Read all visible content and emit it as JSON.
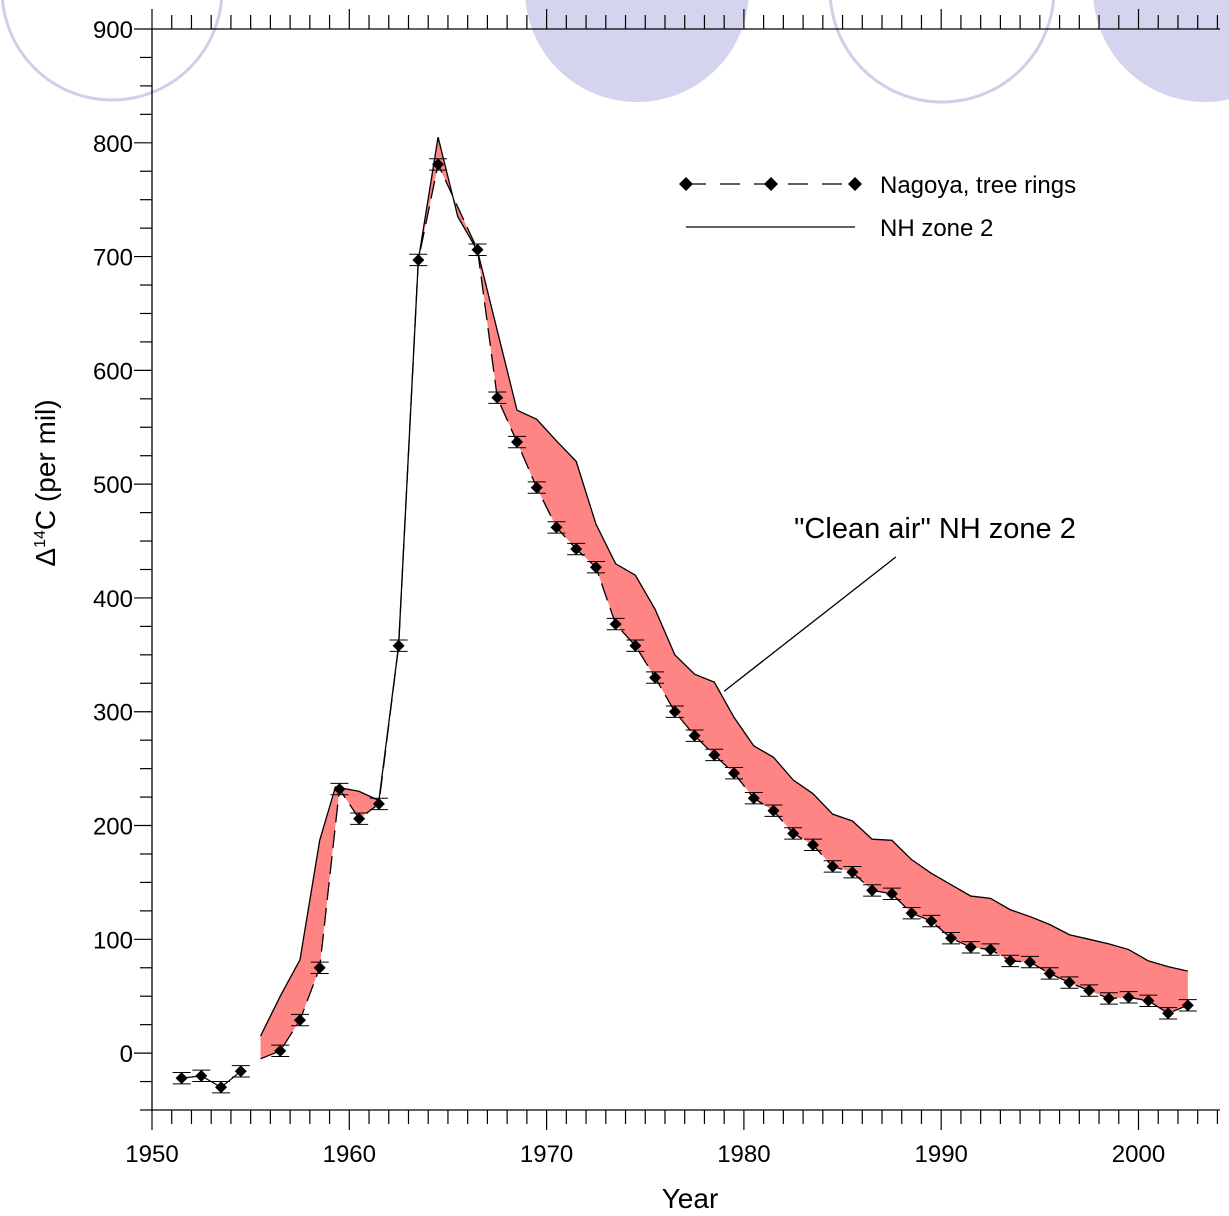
{
  "chart_data": {
    "type": "line",
    "title": "",
    "xlabel": "Year",
    "ylabel_main": "Δ",
    "ylabel_sup": "14",
    "ylabel_rest": "C (per mil)",
    "xlim": [
      1950,
      2004
    ],
    "ylim": [
      -50,
      900
    ],
    "x_ticks": [
      1950,
      1960,
      1970,
      1980,
      1990,
      2000
    ],
    "y_ticks": [
      0,
      100,
      200,
      300,
      400,
      500,
      600,
      700,
      800,
      900
    ],
    "x_minor_step": 1,
    "y_minor_step": 25,
    "legend": {
      "placement": "top-right",
      "entries": [
        "Nagoya, tree rings",
        "NH zone 2"
      ]
    },
    "annotation": {
      "text": "\"Clean air\" NH zone 2",
      "pointer_from": [
        1987.7,
        436
      ],
      "pointer_to": [
        1979,
        318
      ]
    },
    "series": [
      {
        "name": "Nagoya, tree rings",
        "style": "dashed-diamond",
        "error": 5,
        "x": [
          1951.5,
          1952.5,
          1953.5,
          1954.5,
          1956.5,
          1957.5,
          1958.5,
          1959.5,
          1960.5,
          1961.5,
          1962.5,
          1963.5,
          1964.5,
          1966.5,
          1967.5,
          1968.5,
          1969.5,
          1970.5,
          1971.5,
          1972.5,
          1973.5,
          1974.5,
          1975.5,
          1976.5,
          1977.5,
          1978.5,
          1979.5,
          1980.5,
          1981.5,
          1982.5,
          1983.5,
          1984.5,
          1985.5,
          1986.5,
          1987.5,
          1988.5,
          1989.5,
          1990.5,
          1991.5,
          1992.5,
          1993.5,
          1994.5,
          1995.5,
          1996.5,
          1997.5,
          1998.5,
          1999.5,
          2000.5,
          2001.5,
          2002.5
        ],
        "y": [
          -22,
          -20,
          -30,
          -16,
          2,
          29,
          75,
          232,
          206,
          219,
          358,
          697,
          781,
          706,
          576,
          537,
          497,
          462,
          443,
          427,
          377,
          358,
          330,
          300,
          279,
          262,
          246,
          224,
          213,
          193,
          183,
          164,
          159,
          143,
          140,
          123,
          116,
          101,
          93,
          91,
          81,
          80,
          70,
          62,
          55,
          48,
          49,
          46,
          35,
          42
        ]
      },
      {
        "name": "NH zone 2",
        "style": "solid",
        "x": [
          1955.5,
          1956.5,
          1957.5,
          1958.5,
          1959.3,
          1960.5,
          1961.5,
          1962.5,
          1963.5,
          1964.5,
          1965.5,
          1966.5,
          1967.5,
          1968.5,
          1969.5,
          1970.5,
          1971.5,
          1972.5,
          1973.5,
          1974.5,
          1975.5,
          1976.5,
          1977.5,
          1978.5,
          1979.5,
          1980.5,
          1981.5,
          1982.5,
          1983.5,
          1984.5,
          1985.5,
          1986.5,
          1987.5,
          1988.5,
          1989.5,
          1990.5,
          1991.5,
          1992.5,
          1993.5,
          1994.5,
          1995.5,
          1996.5,
          1997.5,
          1998.5,
          1999.5,
          2000.5,
          2001.5,
          2002.5
        ],
        "y": [
          15,
          50,
          82,
          187,
          234,
          230,
          222,
          358,
          697,
          805,
          735,
          705,
          635,
          565,
          557,
          538,
          520,
          465,
          430,
          420,
          390,
          350,
          333,
          326,
          295,
          270,
          260,
          240,
          228,
          210,
          204,
          188,
          187,
          170,
          158,
          148,
          138,
          136,
          126,
          120,
          113,
          104,
          100,
          96,
          91,
          81,
          76,
          72
        ]
      }
    ]
  }
}
